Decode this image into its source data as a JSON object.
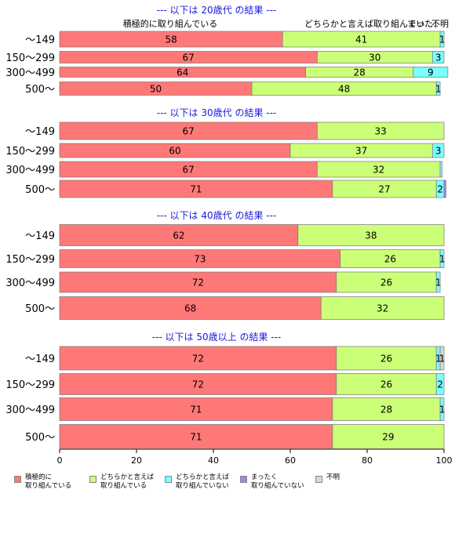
{
  "chart_data": {
    "type": "bar",
    "orientation": "horizontal",
    "stacked": true,
    "xlim": [
      0,
      100
    ],
    "xticks": [
      0,
      20,
      40,
      60,
      80,
      100
    ],
    "colors": [
      "#ff7878",
      "#ccff78",
      "#78ffff",
      "#b478ff",
      "#d8d8d8"
    ],
    "series_names": [
      "積極的に取り組んでいる",
      "どちらかと言えば取り組んでいる",
      "どちらかと言えば取り組んでいない",
      "まったく取り組んでいない",
      "不明"
    ],
    "header_labels": [
      "積極的に取り組んでいる",
      "どちらかと言えば取り組んでい...",
      "まった..",
      "不明"
    ],
    "panels": [
      {
        "title": "--- 以下は 20歳代 の結果 ---",
        "categories": [
          "〜149",
          "150〜299",
          "300〜499",
          "500〜"
        ],
        "values": [
          [
            58,
            41,
            1,
            0,
            0
          ],
          [
            67,
            30,
            3,
            0,
            0
          ],
          [
            64,
            28,
            9,
            0,
            0
          ],
          [
            50,
            48,
            1,
            0,
            0
          ]
        ],
        "labels": [
          [
            "58",
            "41",
            "1",
            "",
            ""
          ],
          [
            "67",
            "30",
            "3",
            "",
            ""
          ],
          [
            "64",
            "28",
            "9",
            "",
            ""
          ],
          [
            "50",
            "48",
            "1",
            "",
            ""
          ]
        ]
      },
      {
        "title": "--- 以下は 30歳代 の結果 ---",
        "categories": [
          "〜149",
          "150〜299",
          "300〜499",
          "500〜"
        ],
        "values": [
          [
            67,
            33,
            0,
            0,
            0
          ],
          [
            60,
            37,
            3,
            0,
            0
          ],
          [
            67,
            32,
            0.5,
            0,
            0
          ],
          [
            71,
            27,
            2,
            0.5,
            0
          ]
        ],
        "labels": [
          [
            "67",
            "33",
            "",
            "",
            ""
          ],
          [
            "60",
            "37",
            "3",
            "",
            ""
          ],
          [
            "67",
            "32",
            "",
            "",
            ""
          ],
          [
            "71",
            "27",
            "2",
            "",
            ""
          ]
        ]
      },
      {
        "title": "--- 以下は 40歳代 の結果 ---",
        "categories": [
          "〜149",
          "150〜299",
          "300〜499",
          "500〜"
        ],
        "values": [
          [
            62,
            38,
            0,
            0,
            0
          ],
          [
            73,
            26,
            1,
            0,
            0
          ],
          [
            72,
            26,
            1,
            0,
            0
          ],
          [
            68,
            32,
            0,
            0,
            0
          ]
        ],
        "labels": [
          [
            "62",
            "38",
            "",
            "",
            ""
          ],
          [
            "73",
            "26",
            "1",
            "",
            ""
          ],
          [
            "72",
            "26",
            "1",
            "",
            ""
          ],
          [
            "68",
            "32",
            "",
            "",
            ""
          ]
        ]
      },
      {
        "title": "--- 以下は 50歳以上 の結果 ---",
        "categories": [
          "〜149",
          "150〜299",
          "300〜499",
          "500〜"
        ],
        "values": [
          [
            72,
            26,
            1,
            0,
            1
          ],
          [
            72,
            26,
            2,
            0,
            0
          ],
          [
            71,
            28,
            1,
            0,
            0
          ],
          [
            71,
            29,
            0,
            0,
            0
          ]
        ],
        "labels": [
          [
            "72",
            "26",
            "1",
            "",
            "1"
          ],
          [
            "72",
            "26",
            "2",
            "",
            ""
          ],
          [
            "71",
            "28",
            "1",
            "",
            ""
          ],
          [
            "71",
            "29",
            "",
            "",
            ""
          ]
        ]
      }
    ]
  },
  "legend": [
    {
      "line1": "積極的に",
      "line2": "取り組んでいる"
    },
    {
      "line1": "どちらかと言えば",
      "line2": "取り組んでいる"
    },
    {
      "line1": "どちらかと言えば",
      "line2": "取り組んでいない"
    },
    {
      "line1": "まったく",
      "line2": "取り組んでいない"
    },
    {
      "line1": "不明",
      "line2": ""
    }
  ]
}
